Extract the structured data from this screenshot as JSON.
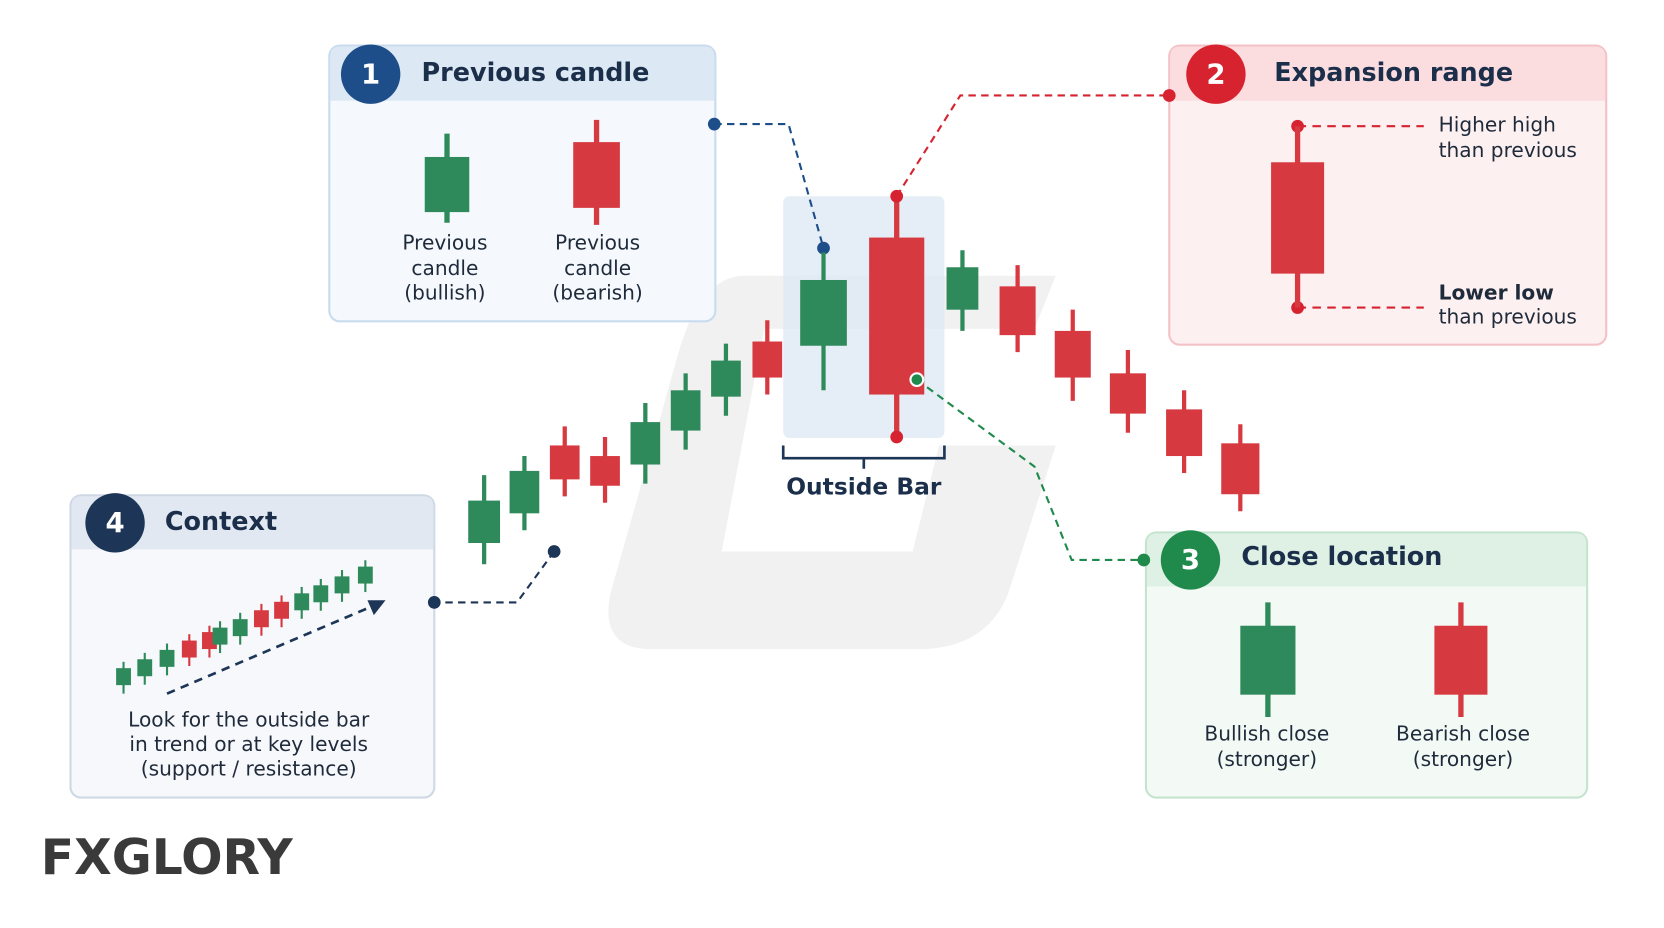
{
  "panels": [
    {
      "number": "1",
      "title": "Previous candle",
      "labels": [
        [
          "Previous",
          "candle",
          "(bullish)"
        ],
        [
          "Previous",
          "candle",
          "(bearish)"
        ]
      ]
    },
    {
      "number": "2",
      "title": "Expansion range",
      "labels": [
        [
          "Higher high",
          "than previous"
        ],
        [
          "Lower low",
          "than previous"
        ]
      ]
    },
    {
      "number": "3",
      "title": "Close location",
      "labels": [
        [
          "Bullish close",
          "(stronger)"
        ],
        [
          "Bearish close",
          "(stronger)"
        ]
      ]
    },
    {
      "number": "4",
      "title": "Context",
      "labels": [
        [
          "Look for the outside bar",
          "in trend or at key levels",
          "(support / resistance)"
        ]
      ]
    }
  ],
  "outside_bar_label": "Outside Bar",
  "logo": "FXGLORY"
}
